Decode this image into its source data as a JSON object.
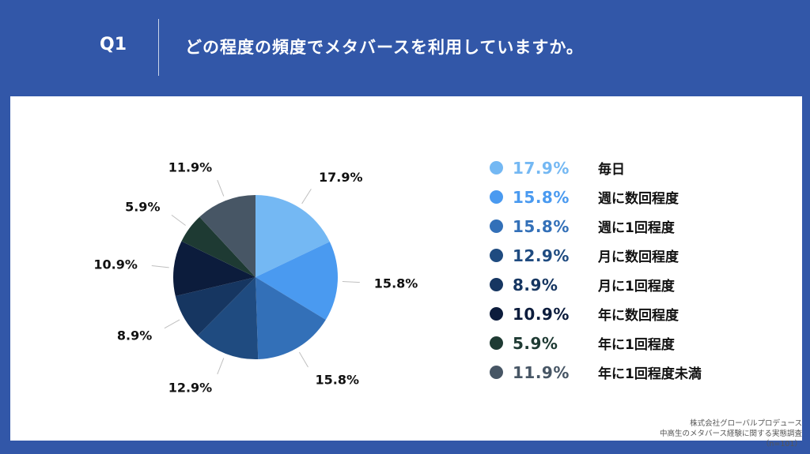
{
  "header": {
    "question_number": "Q1",
    "question_text": "どの程度の頻度でメタバースを利用していますか。"
  },
  "chart_data": {
    "type": "pie",
    "title": "",
    "slices": [
      {
        "label": "毎日",
        "value": 17.9,
        "display": "17.9%",
        "color": "#74b8f3"
      },
      {
        "label": "週に数回程度",
        "value": 15.8,
        "display": "15.8%",
        "color": "#4a9af0"
      },
      {
        "label": "週に1回程度",
        "value": 15.8,
        "display": "15.8%",
        "color": "#3370b8"
      },
      {
        "label": "月に数回程度",
        "value": 12.9,
        "display": "12.9%",
        "color": "#1f4b80"
      },
      {
        "label": "月に1回程度",
        "value": 8.9,
        "display": "8.9%",
        "color": "#163661"
      },
      {
        "label": "年に数回程度",
        "value": 10.9,
        "display": "10.9%",
        "color": "#0c1c3c"
      },
      {
        "label": "年に1回程度",
        "value": 5.9,
        "display": "5.9%",
        "color": "#1e3a33"
      },
      {
        "label": "年に1回程度未満",
        "value": 11.9,
        "display": "11.9%",
        "color": "#475665"
      }
    ],
    "legend_position": "right"
  },
  "footer": {
    "line1": "株式会社グローバルプロデュース",
    "line2": "中高生のメタバース経験に関する実態調査",
    "line3": "（n=101）"
  }
}
